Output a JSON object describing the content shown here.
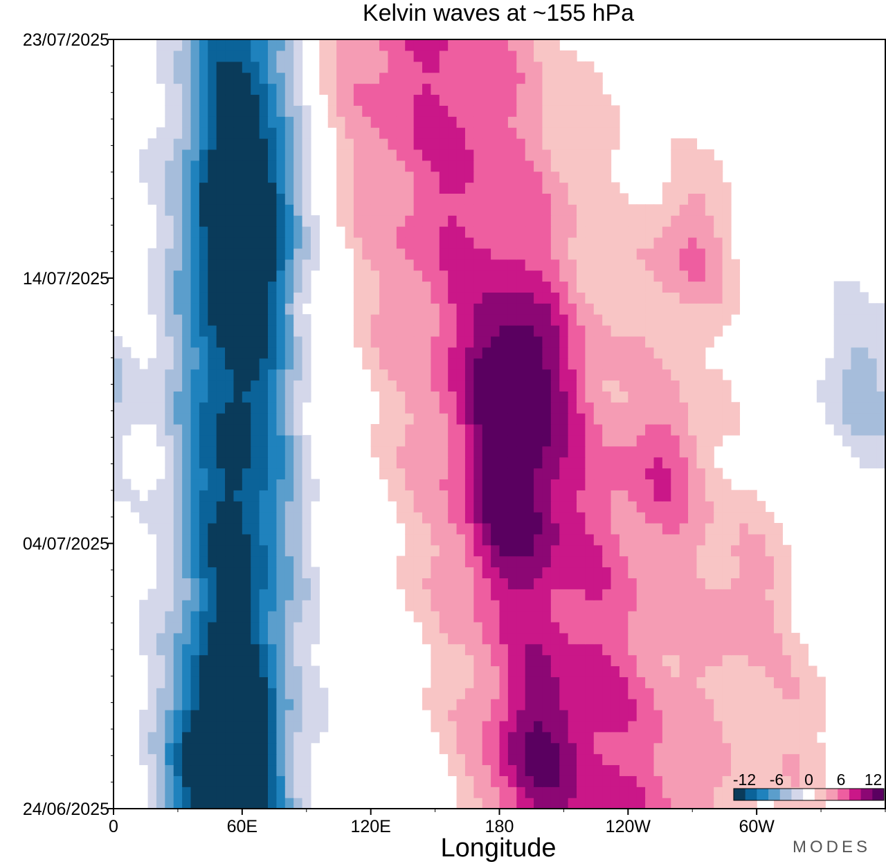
{
  "chart_data": {
    "type": "heatmap",
    "title": "Kelvin waves at ~155 hPa",
    "xlabel": "Longitude",
    "ylabel": "",
    "x_ticks": [
      "0",
      "60E",
      "120E",
      "180",
      "120W",
      "60W"
    ],
    "x_tick_values": [
      0,
      60,
      120,
      180,
      240,
      300
    ],
    "xlim": [
      0,
      360
    ],
    "y_ticks": [
      "23/07/2025",
      "14/07/2025",
      "04/07/2025",
      "24/06/2025"
    ],
    "y_tick_days": [
      29,
      20,
      10,
      0
    ],
    "ylim_days": [
      0,
      29
    ],
    "colorbar": {
      "ticks": [
        "-12",
        "-6",
        "0",
        "6",
        "12"
      ],
      "tick_values": [
        -12,
        -6,
        0,
        6,
        12
      ],
      "levels": [
        -14,
        -12,
        -10,
        -8,
        -6,
        -4,
        -2,
        2,
        4,
        6,
        8,
        10,
        12,
        14
      ],
      "colors": [
        "#0a3b5a",
        "#0b6399",
        "#1f82bd",
        "#5b9ecc",
        "#a6bddb",
        "#d4d7ea",
        "#ffffff",
        "#f8c5c5",
        "#f59cb4",
        "#ee5ea0",
        "#ca1788",
        "#8c0774",
        "#5a0060"
      ]
    },
    "field": {
      "blue_band": {
        "center_lon": 55,
        "drift_per_day": 0.15,
        "amplitude": -13,
        "width": 28
      },
      "pink_band": {
        "center_lon": 190,
        "drift_per_day": -3,
        "amplitude": 8,
        "width": 60
      },
      "peaks": [
        {
          "lon": 188,
          "day": 16,
          "value": 13
        },
        {
          "lon": 62,
          "day": 22,
          "value": -14
        },
        {
          "lon": 50,
          "day": 2,
          "value": -14
        },
        {
          "lon": 185,
          "day": 11,
          "value": 9
        },
        {
          "lon": 195,
          "day": 2,
          "value": 10
        },
        {
          "lon": 270,
          "day": 21,
          "value": 9
        },
        {
          "lon": 260,
          "day": 13,
          "value": 8
        },
        {
          "lon": 295,
          "day": 8,
          "value": 7
        },
        {
          "lon": 350,
          "day": 16,
          "value": -8
        },
        {
          "lon": 320,
          "day": 3,
          "value": 5
        }
      ]
    }
  },
  "branding": {
    "logo_text": "MODES"
  }
}
